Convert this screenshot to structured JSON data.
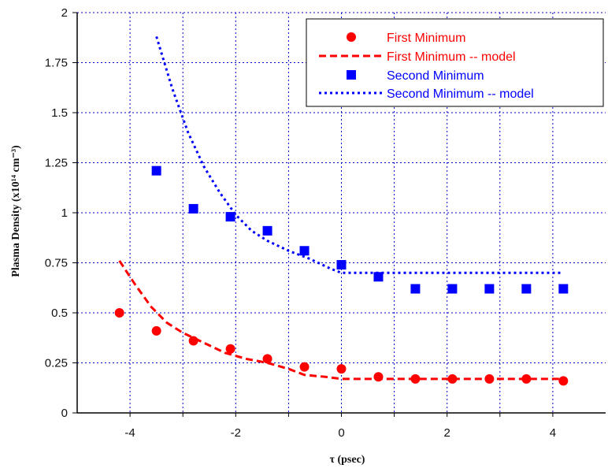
{
  "chart_data": {
    "type": "scatter",
    "title": "",
    "xlabel": "τ (psec)",
    "ylabel": "Plasma Density (x10¹⁴ cm⁻³)",
    "xlim": [
      -5,
      5
    ],
    "ylim": [
      0,
      2
    ],
    "x_ticks": [
      -4,
      -2,
      0,
      2,
      4
    ],
    "x_tick_labels": [
      "-4",
      "-2",
      "0",
      "2",
      "4"
    ],
    "y_ticks": [
      0,
      0.25,
      0.5,
      0.75,
      1,
      1.25,
      1.5,
      1.75,
      2
    ],
    "y_tick_labels": [
      "0",
      "0.25",
      "0.5",
      "0.75",
      "1",
      "1.25",
      "1.5",
      "1.75",
      "2"
    ],
    "grid": true,
    "legend_position": "top-right",
    "series": [
      {
        "name": "First Minimum",
        "kind": "markers",
        "marker": "circle",
        "color": "#ff0000",
        "x": [
          -4.2,
          -3.5,
          -2.8,
          -2.1,
          -1.4,
          -0.7,
          0.0,
          0.7,
          1.4,
          2.1,
          2.8,
          3.5,
          4.2
        ],
        "y": [
          0.5,
          0.41,
          0.36,
          0.32,
          0.27,
          0.23,
          0.22,
          0.18,
          0.17,
          0.17,
          0.17,
          0.17,
          0.16
        ]
      },
      {
        "name": "First Minimum -- model",
        "kind": "line",
        "dash": "dashed",
        "color": "#ff0000",
        "x": [
          -4.2,
          -3.9,
          -3.6,
          -3.3,
          -3.0,
          -2.6,
          -2.2,
          -1.8,
          -1.4,
          -1.0,
          -0.7,
          -0.3,
          0.0,
          1.0,
          2.0,
          3.0,
          4.2
        ],
        "y": [
          0.76,
          0.64,
          0.53,
          0.45,
          0.4,
          0.35,
          0.3,
          0.27,
          0.25,
          0.22,
          0.19,
          0.18,
          0.17,
          0.17,
          0.17,
          0.17,
          0.17
        ]
      },
      {
        "name": "Second Minimum",
        "kind": "markers",
        "marker": "square",
        "color": "#0000ff",
        "x": [
          -3.5,
          -2.8,
          -2.1,
          -1.4,
          -0.7,
          0.0,
          0.7,
          1.4,
          2.1,
          2.8,
          3.5,
          4.2
        ],
        "y": [
          1.21,
          1.02,
          0.98,
          0.91,
          0.81,
          0.74,
          0.68,
          0.62,
          0.62,
          0.62,
          0.62,
          0.62
        ]
      },
      {
        "name": "Second Minimum -- model",
        "kind": "line",
        "dash": "dotted",
        "color": "#0000ff",
        "x": [
          -3.5,
          -3.2,
          -2.9,
          -2.6,
          -2.3,
          -2.0,
          -1.7,
          -1.4,
          -1.0,
          -0.6,
          -0.2,
          0.0,
          1.0,
          2.0,
          3.0,
          4.2
        ],
        "y": [
          1.88,
          1.62,
          1.4,
          1.23,
          1.1,
          0.99,
          0.91,
          0.86,
          0.81,
          0.77,
          0.72,
          0.7,
          0.7,
          0.7,
          0.7,
          0.7
        ]
      }
    ]
  }
}
